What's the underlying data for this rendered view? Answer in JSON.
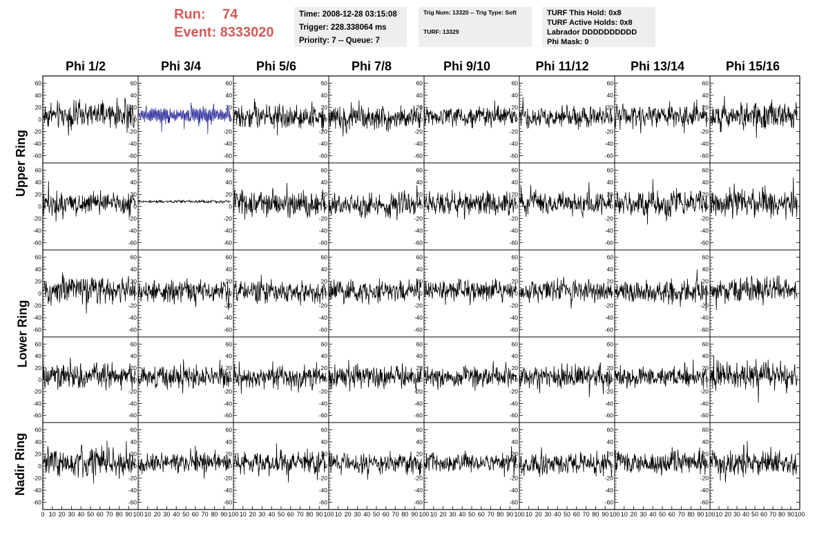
{
  "run_info": {
    "run_label": "Run:",
    "run_value": "74",
    "event_label": "Event:",
    "event_value": "8333020"
  },
  "time_box": {
    "time": "Time: 2008-12-28 03:15:08",
    "trigger": "Trigger: 228.338064 ms",
    "priority": "Priority: 7 -- Queue: 7"
  },
  "trig_box": {
    "trig_line": "Trig Num: 13320 -- Trig Type: Soft",
    "turf_line": "TURF: 13329"
  },
  "turf_box": {
    "this_hold": "TURF This Hold: 0x8",
    "active_holds": "TURF Active Holds: 0x8",
    "labrador": "Labrador DDDDDDDDDD",
    "phi_mask": "Phi Mask: 0"
  },
  "chart_data": {
    "type": "line",
    "columns": [
      "Phi 1/2",
      "Phi 3/4",
      "Phi 5/6",
      "Phi 7/8",
      "Phi 9/10",
      "Phi 11/12",
      "Phi 13/14",
      "Phi 15/16"
    ],
    "rings": [
      {
        "label": "Upper Ring",
        "rows": [
          0,
          1
        ]
      },
      {
        "label": "Lower Ring",
        "rows": [
          2,
          3
        ]
      },
      {
        "label": "Nadir Ring",
        "rows": [
          4
        ]
      }
    ],
    "ylim": [
      -65,
      65
    ],
    "yticks": [
      "60",
      "40",
      "20",
      "0",
      "-20",
      "-40",
      "-60"
    ],
    "ytick_values": [
      60,
      40,
      20,
      0,
      -20,
      -40,
      -60
    ],
    "xlim": [
      0,
      100
    ],
    "xticks": [
      "0",
      "10",
      "20",
      "30",
      "40",
      "50",
      "60",
      "70",
      "80",
      "90",
      "100"
    ],
    "xtick_values": [
      0,
      10,
      20,
      30,
      40,
      50,
      60,
      70,
      80,
      90,
      100
    ],
    "trace_x_range": [
      0,
      97
    ],
    "trace_samples": 260,
    "trace_color": "#000000",
    "highlight_color": "#2a2a9a",
    "panels": [
      {
        "row": 0,
        "col": 0,
        "offset": 7,
        "amplitude": 14
      },
      {
        "row": 0,
        "col": 1,
        "offset": 7,
        "amplitude": 13,
        "highlight": true
      },
      {
        "row": 0,
        "col": 2,
        "offset": 5,
        "amplitude": 12
      },
      {
        "row": 0,
        "col": 3,
        "offset": 4,
        "amplitude": 13
      },
      {
        "row": 0,
        "col": 4,
        "offset": 5,
        "amplitude": 11
      },
      {
        "row": 0,
        "col": 5,
        "offset": 4,
        "amplitude": 11
      },
      {
        "row": 0,
        "col": 6,
        "offset": 6,
        "amplitude": 12
      },
      {
        "row": 0,
        "col": 7,
        "offset": 6,
        "amplitude": 14
      },
      {
        "row": 1,
        "col": 0,
        "offset": 5,
        "amplitude": 13
      },
      {
        "row": 1,
        "col": 1,
        "offset": 8,
        "amplitude": 1.5
      },
      {
        "row": 1,
        "col": 2,
        "offset": 5,
        "amplitude": 14
      },
      {
        "row": 1,
        "col": 3,
        "offset": 3,
        "amplitude": 13
      },
      {
        "row": 1,
        "col": 4,
        "offset": 4,
        "amplitude": 12
      },
      {
        "row": 1,
        "col": 5,
        "offset": 5,
        "amplitude": 12
      },
      {
        "row": 1,
        "col": 6,
        "offset": 5,
        "amplitude": 13
      },
      {
        "row": 1,
        "col": 7,
        "offset": 4,
        "amplitude": 14
      },
      {
        "row": 2,
        "col": 0,
        "offset": 6,
        "amplitude": 14
      },
      {
        "row": 2,
        "col": 1,
        "offset": 3,
        "amplitude": 12
      },
      {
        "row": 2,
        "col": 2,
        "offset": 3,
        "amplitude": 12
      },
      {
        "row": 2,
        "col": 3,
        "offset": 3,
        "amplitude": 12
      },
      {
        "row": 2,
        "col": 4,
        "offset": 5,
        "amplitude": 11
      },
      {
        "row": 2,
        "col": 5,
        "offset": 5,
        "amplitude": 11
      },
      {
        "row": 2,
        "col": 6,
        "offset": 3,
        "amplitude": 12
      },
      {
        "row": 2,
        "col": 7,
        "offset": 5,
        "amplitude": 13
      },
      {
        "row": 3,
        "col": 0,
        "offset": 5,
        "amplitude": 13
      },
      {
        "row": 3,
        "col": 1,
        "offset": 5,
        "amplitude": 13
      },
      {
        "row": 3,
        "col": 2,
        "offset": 5,
        "amplitude": 12
      },
      {
        "row": 3,
        "col": 3,
        "offset": 5,
        "amplitude": 12
      },
      {
        "row": 3,
        "col": 4,
        "offset": 5,
        "amplitude": 11
      },
      {
        "row": 3,
        "col": 5,
        "offset": 4,
        "amplitude": 13
      },
      {
        "row": 3,
        "col": 6,
        "offset": 5,
        "amplitude": 11
      },
      {
        "row": 3,
        "col": 7,
        "offset": 8,
        "amplitude": 15
      },
      {
        "row": 4,
        "col": 0,
        "offset": 6,
        "amplitude": 15
      },
      {
        "row": 4,
        "col": 1,
        "offset": 5,
        "amplitude": 11
      },
      {
        "row": 4,
        "col": 2,
        "offset": 6,
        "amplitude": 12
      },
      {
        "row": 4,
        "col": 3,
        "offset": 5,
        "amplitude": 11
      },
      {
        "row": 4,
        "col": 4,
        "offset": 6,
        "amplitude": 10
      },
      {
        "row": 4,
        "col": 5,
        "offset": 4,
        "amplitude": 12
      },
      {
        "row": 4,
        "col": 6,
        "offset": 7,
        "amplitude": 12
      },
      {
        "row": 4,
        "col": 7,
        "offset": 5,
        "amplitude": 13
      }
    ]
  }
}
